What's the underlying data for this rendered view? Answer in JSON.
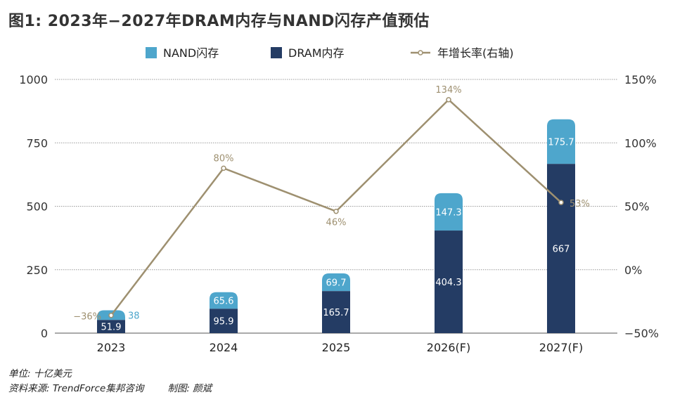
{
  "title": "图1: 2023年−2027年DRAM内存与NAND闪存产值预估",
  "footer": {
    "unit": "单位: 十亿美元",
    "source": "资料来源: TrendForce集邦咨询",
    "made_by": "制图: 颜斌"
  },
  "colors": {
    "nand": "#4ea6cc",
    "dram": "#243c64",
    "growth": "#9e9070",
    "grid": "#9a9a9a"
  },
  "chart_data": {
    "type": "bar",
    "stacked": true,
    "categories": [
      "2023",
      "2024",
      "2025",
      "2026(F)",
      "2027(F)"
    ],
    "series": [
      {
        "name": "DRAM内存",
        "axis": "left",
        "values": [
          51.9,
          95.9,
          165.7,
          404.3,
          667
        ],
        "labels": [
          "51.9",
          "95.9",
          "165.7",
          "404.3",
          "667"
        ]
      },
      {
        "name": "NAND闪存",
        "axis": "left",
        "values": [
          38,
          65.6,
          69.7,
          147.3,
          175.7
        ],
        "labels": [
          "38",
          "65.6",
          "69.7",
          "147.3",
          "175.7"
        ]
      },
      {
        "name": "年增长率(右轴)",
        "type": "line",
        "axis": "right",
        "values": [
          -36,
          80,
          46,
          134,
          53
        ],
        "labels": [
          "−36%",
          "80%",
          "46%",
          "134%",
          "53%"
        ]
      }
    ],
    "legend": [
      "NAND闪存",
      "DRAM内存",
      "年增长率(右轴)"
    ],
    "legend_position": "top",
    "y_left": {
      "lim": [
        0,
        1000
      ],
      "ticks": [
        "0",
        "250",
        "500",
        "750",
        "1000"
      ]
    },
    "y_right": {
      "lim": [
        -50,
        150
      ],
      "ticks": [
        "−50%",
        "0%",
        "50%",
        "100%",
        "150%"
      ]
    },
    "grid": true
  }
}
